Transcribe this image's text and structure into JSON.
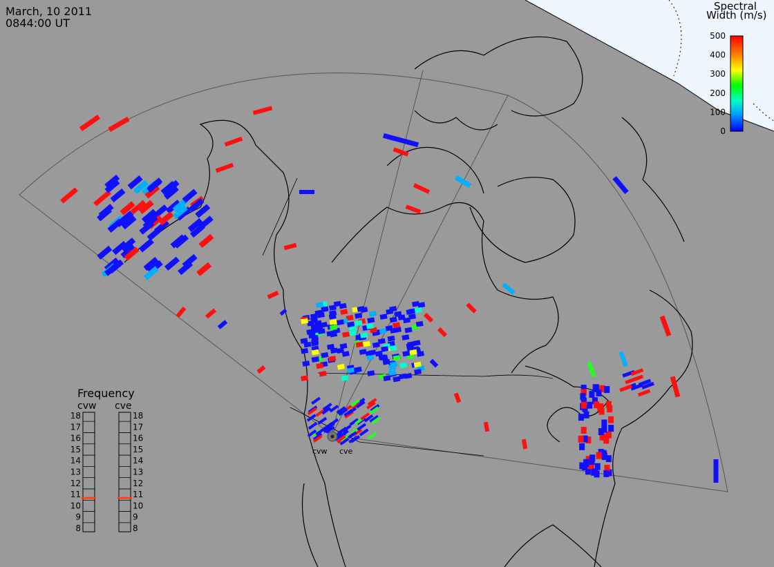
{
  "header": {
    "date": "March, 10 2011",
    "time": "0844:00 UT"
  },
  "colorbar": {
    "title_line1": "Spectral",
    "title_line2": "Width (m/s)",
    "ticks": [
      "500",
      "400",
      "300",
      "200",
      "100",
      "0"
    ],
    "stops": [
      "#0000ff",
      "#00a0ff",
      "#00ffc0",
      "#00ff00",
      "#ffff00",
      "#ff8000",
      "#ff0000"
    ]
  },
  "frequency": {
    "title": "Frequency",
    "radars": [
      {
        "name": "cvw",
        "value_mhz": 10.7
      },
      {
        "name": "cve",
        "value_mhz": 10.7
      }
    ],
    "scale": [
      "18",
      "17",
      "16",
      "15",
      "14",
      "13",
      "12",
      "11",
      "10",
      "9",
      "8"
    ]
  },
  "sites": {
    "west": "cvw",
    "east": "cve"
  },
  "colors": {
    "background": "#9a9a9a",
    "coast": "#000000",
    "fov": "#555555",
    "pole_region": "#eef6ff",
    "freq_mark": "#ff4000"
  }
}
